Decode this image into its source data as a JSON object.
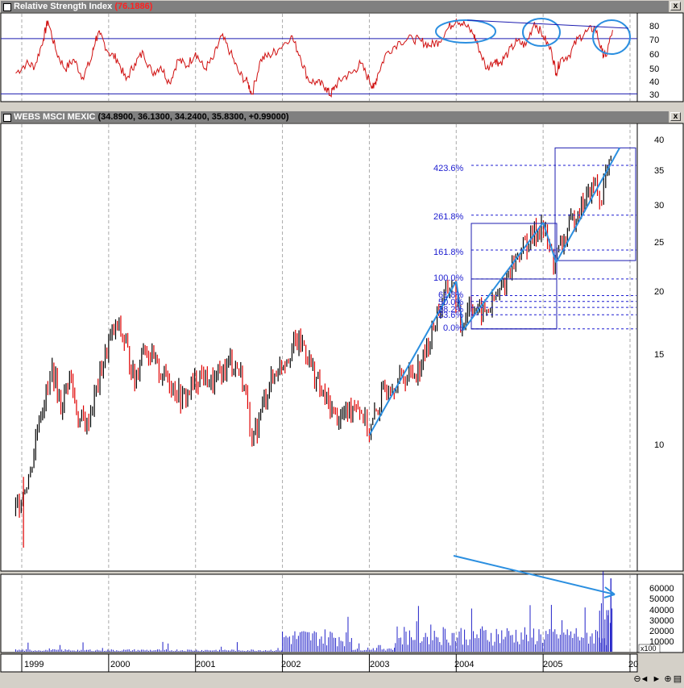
{
  "rsi_panel": {
    "title": "Relative Strength Index",
    "value": "(76.1886)",
    "levels": [
      "80",
      "70",
      "60",
      "50",
      "40",
      "30"
    ]
  },
  "price_panel": {
    "title": "WEBS MSCI MEXIC",
    "values": "(34.8900, 36.1300, 34.2400, 35.8300, +0.99000)",
    "levels": [
      "40",
      "35",
      "30",
      "25",
      "20",
      "15",
      "10"
    ]
  },
  "fib_labels": [
    "423.6%",
    "261.8%",
    "161.8%",
    "100.0%",
    "61.8%",
    "50.0%",
    "38.2%",
    "23.6%",
    "0.0%"
  ],
  "volume_panel": {
    "levels": [
      "60000",
      "50000",
      "40000",
      "30000",
      "20000",
      "10000"
    ],
    "multiplier": "x100"
  },
  "x_axis": {
    "years": [
      "1999",
      "2000",
      "2001",
      "2002",
      "2003",
      "2004",
      "2005",
      "20"
    ]
  },
  "close_button": "x",
  "nav": {
    "left": "◄",
    "right": "►",
    "zoom_out": "⊖",
    "zoom_in": "⊕",
    "menu": "▤"
  },
  "chart_data": {
    "type": "line",
    "title": "WEBS MSCI MEXIC",
    "x_range": [
      1999,
      2006
    ],
    "y_scale": "log",
    "ylim": [
      6,
      42
    ],
    "price_points": [
      [
        1998.93,
        7.8
      ],
      [
        1999.1,
        9.2
      ],
      [
        1999.2,
        11.8
      ],
      [
        1999.3,
        13.2
      ],
      [
        1999.35,
        14.5
      ],
      [
        1999.45,
        12.2
      ],
      [
        1999.55,
        14.1
      ],
      [
        1999.65,
        11.6
      ],
      [
        1999.75,
        11.3
      ],
      [
        1999.9,
        14.0
      ],
      [
        2000.0,
        16.2
      ],
      [
        2000.1,
        17.5
      ],
      [
        2000.2,
        16.0
      ],
      [
        2000.3,
        13.6
      ],
      [
        2000.4,
        16.2
      ],
      [
        2000.5,
        15.0
      ],
      [
        2000.6,
        14.2
      ],
      [
        2000.7,
        13.8
      ],
      [
        2000.85,
        12.6
      ],
      [
        2000.95,
        13.3
      ],
      [
        2001.05,
        14.1
      ],
      [
        2001.2,
        13.5
      ],
      [
        2001.3,
        14.2
      ],
      [
        2001.4,
        15.0
      ],
      [
        2001.5,
        14.4
      ],
      [
        2001.6,
        12.6
      ],
      [
        2001.65,
        10.2
      ],
      [
        2001.75,
        12.0
      ],
      [
        2001.85,
        13.5
      ],
      [
        2001.95,
        14.5
      ],
      [
        2002.05,
        15.3
      ],
      [
        2002.15,
        16.2
      ],
      [
        2002.25,
        16.0
      ],
      [
        2002.35,
        14.3
      ],
      [
        2002.45,
        13.0
      ],
      [
        2002.55,
        12.2
      ],
      [
        2002.65,
        11.6
      ],
      [
        2002.75,
        12.0
      ],
      [
        2002.85,
        12.6
      ],
      [
        2002.95,
        11.5
      ],
      [
        2003.0,
        10.9
      ],
      [
        2003.1,
        12.2
      ],
      [
        2003.2,
        13.4
      ],
      [
        2003.35,
        13.8
      ],
      [
        2003.5,
        14.2
      ],
      [
        2003.6,
        14.8
      ],
      [
        2003.7,
        16.5
      ],
      [
        2003.78,
        18.4
      ],
      [
        2003.88,
        20.0
      ],
      [
        2003.95,
        21.2
      ],
      [
        2004.02,
        19.0
      ],
      [
        2004.05,
        17.2
      ],
      [
        2004.15,
        19.4
      ],
      [
        2004.25,
        18.5
      ],
      [
        2004.35,
        18.6
      ],
      [
        2004.5,
        20.1
      ],
      [
        2004.6,
        22.0
      ],
      [
        2004.75,
        24.5
      ],
      [
        2004.9,
        26.0
      ],
      [
        2004.98,
        27.3
      ],
      [
        2005.05,
        25.0
      ],
      [
        2005.12,
        23.2
      ],
      [
        2005.2,
        24.5
      ],
      [
        2005.3,
        26.8
      ],
      [
        2005.4,
        29.0
      ],
      [
        2005.5,
        30.5
      ],
      [
        2005.6,
        32.5
      ],
      [
        2005.65,
        30.2
      ],
      [
        2005.72,
        33.5
      ],
      [
        2005.8,
        35.83
      ]
    ],
    "fibonacci": [
      {
        "label": "423.6%",
        "value": 35.2
      },
      {
        "label": "261.8%",
        "value": 28.3
      },
      {
        "label": "161.8%",
        "value": 24.3
      },
      {
        "label": "100.0%",
        "value": 21.4
      },
      {
        "label": "61.8%",
        "value": 19.9
      },
      {
        "label": "50.0%",
        "value": 19.4
      },
      {
        "label": "38.2%",
        "value": 18.9
      },
      {
        "label": "23.6%",
        "value": 18.3
      },
      {
        "label": "0.0%",
        "value": 17.2
      }
    ],
    "rsi": {
      "ylim": [
        25,
        88
      ],
      "reference_lines": [
        70,
        30
      ],
      "points": [
        [
          1998.93,
          45
        ],
        [
          1999.05,
          52
        ],
        [
          1999.15,
          50
        ],
        [
          1999.25,
          70
        ],
        [
          1999.3,
          83
        ],
        [
          1999.4,
          60
        ],
        [
          1999.5,
          48
        ],
        [
          1999.6,
          55
        ],
        [
          1999.7,
          42
        ],
        [
          1999.8,
          55
        ],
        [
          1999.85,
          70
        ],
        [
          1999.9,
          73
        ],
        [
          2000.0,
          60
        ],
        [
          2000.1,
          55
        ],
        [
          2000.2,
          40
        ],
        [
          2000.3,
          52
        ],
        [
          2000.4,
          60
        ],
        [
          2000.5,
          45
        ],
        [
          2000.6,
          50
        ],
        [
          2000.7,
          38
        ],
        [
          2000.8,
          55
        ],
        [
          2000.9,
          50
        ],
        [
          2001.0,
          60
        ],
        [
          2001.1,
          48
        ],
        [
          2001.2,
          55
        ],
        [
          2001.3,
          72
        ],
        [
          2001.4,
          60
        ],
        [
          2001.5,
          45
        ],
        [
          2001.6,
          38
        ],
        [
          2001.65,
          30
        ],
        [
          2001.75,
          55
        ],
        [
          2001.85,
          58
        ],
        [
          2001.95,
          62
        ],
        [
          2002.1,
          72
        ],
        [
          2002.2,
          58
        ],
        [
          2002.3,
          40
        ],
        [
          2002.4,
          38
        ],
        [
          2002.5,
          35
        ],
        [
          2002.55,
          29
        ],
        [
          2002.6,
          35
        ],
        [
          2002.7,
          42
        ],
        [
          2002.8,
          45
        ],
        [
          2002.9,
          52
        ],
        [
          2003.0,
          40
        ],
        [
          2003.05,
          34
        ],
        [
          2003.1,
          45
        ],
        [
          2003.2,
          60
        ],
        [
          2003.35,
          68
        ],
        [
          2003.5,
          70
        ],
        [
          2003.6,
          68
        ],
        [
          2003.7,
          65
        ],
        [
          2003.8,
          68
        ],
        [
          2003.9,
          77
        ],
        [
          2004.0,
          84
        ],
        [
          2004.1,
          80
        ],
        [
          2004.2,
          73
        ],
        [
          2004.25,
          65
        ],
        [
          2004.35,
          48
        ],
        [
          2004.45,
          55
        ],
        [
          2004.5,
          52
        ],
        [
          2004.6,
          60
        ],
        [
          2004.7,
          68
        ],
        [
          2004.8,
          65
        ],
        [
          2004.9,
          82
        ],
        [
          2005.0,
          72
        ],
        [
          2005.1,
          60
        ],
        [
          2005.15,
          45
        ],
        [
          2005.2,
          55
        ],
        [
          2005.3,
          58
        ],
        [
          2005.4,
          70
        ],
        [
          2005.5,
          75
        ],
        [
          2005.6,
          78
        ],
        [
          2005.68,
          60
        ],
        [
          2005.72,
          57
        ],
        [
          2005.8,
          76.19
        ]
      ]
    },
    "volume": {
      "unit": "x100",
      "ylim": [
        0,
        70000
      ],
      "periods": [
        {
          "from": 1998.93,
          "to": 2002.0,
          "typical": 1500,
          "max": 9000
        },
        {
          "from": 2002.0,
          "to": 2002.8,
          "typical": 14000,
          "max": 42000
        },
        {
          "from": 2002.8,
          "to": 2003.3,
          "typical": 3000,
          "max": 8000
        },
        {
          "from": 2003.3,
          "to": 2005.75,
          "typical": 16000,
          "max": 37000
        },
        {
          "from": 2005.65,
          "to": 2005.8,
          "typical": 28000,
          "max": 67000
        }
      ]
    }
  }
}
